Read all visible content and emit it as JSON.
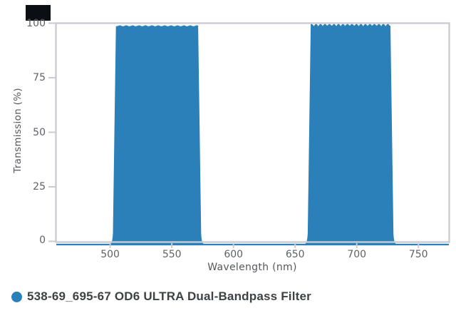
{
  "colors": {
    "band_fill": "#2b80ba",
    "axis_line": "#cbccd3",
    "tick_text": "#5e6166",
    "axis_title_text": "#55585c",
    "legend_text": "#3e4145",
    "legend_marker": "#2b80ba",
    "background": "#ffffff",
    "corner_square": "#0b0e13"
  },
  "legend": {
    "label": "538-69_695-67 OD6 ULTRA Dual-Bandpass Filter",
    "marker": "circle",
    "position": "bottom-left"
  },
  "chart_data": {
    "type": "area",
    "title": "",
    "xlabel": "Wavelength (nm)",
    "ylabel": "Transmission (%)",
    "x_axis": {
      "range_nm": [
        456,
        775
      ],
      "ticks": [
        500,
        550,
        600,
        650,
        700,
        750
      ],
      "grid": false
    },
    "y_axis": {
      "range_pct": [
        0,
        100
      ],
      "ticks": [
        0,
        25,
        50,
        75,
        100
      ],
      "grid": false
    },
    "legend_position": "bottom-left",
    "series": [
      {
        "name": "538-69_695-67 OD6 ULTRA Dual-Bandpass Filter",
        "color": "#2b80ba",
        "fill": true,
        "baseline_transmission_pct": 0,
        "passbands": [
          {
            "start_nm": 503.5,
            "end_nm": 572.5,
            "peak_transmission_pct": 99.1,
            "top_style": "smooth"
          },
          {
            "start_nm": 661.5,
            "end_nm": 728.5,
            "peak_transmission_pct": 99.8,
            "top_style": "scalloped-ripple"
          }
        ]
      }
    ]
  },
  "tick_labels": {
    "x": [
      "500",
      "550",
      "600",
      "650",
      "700",
      "750"
    ],
    "y": [
      "0",
      "25",
      "50",
      "75",
      "100"
    ]
  }
}
